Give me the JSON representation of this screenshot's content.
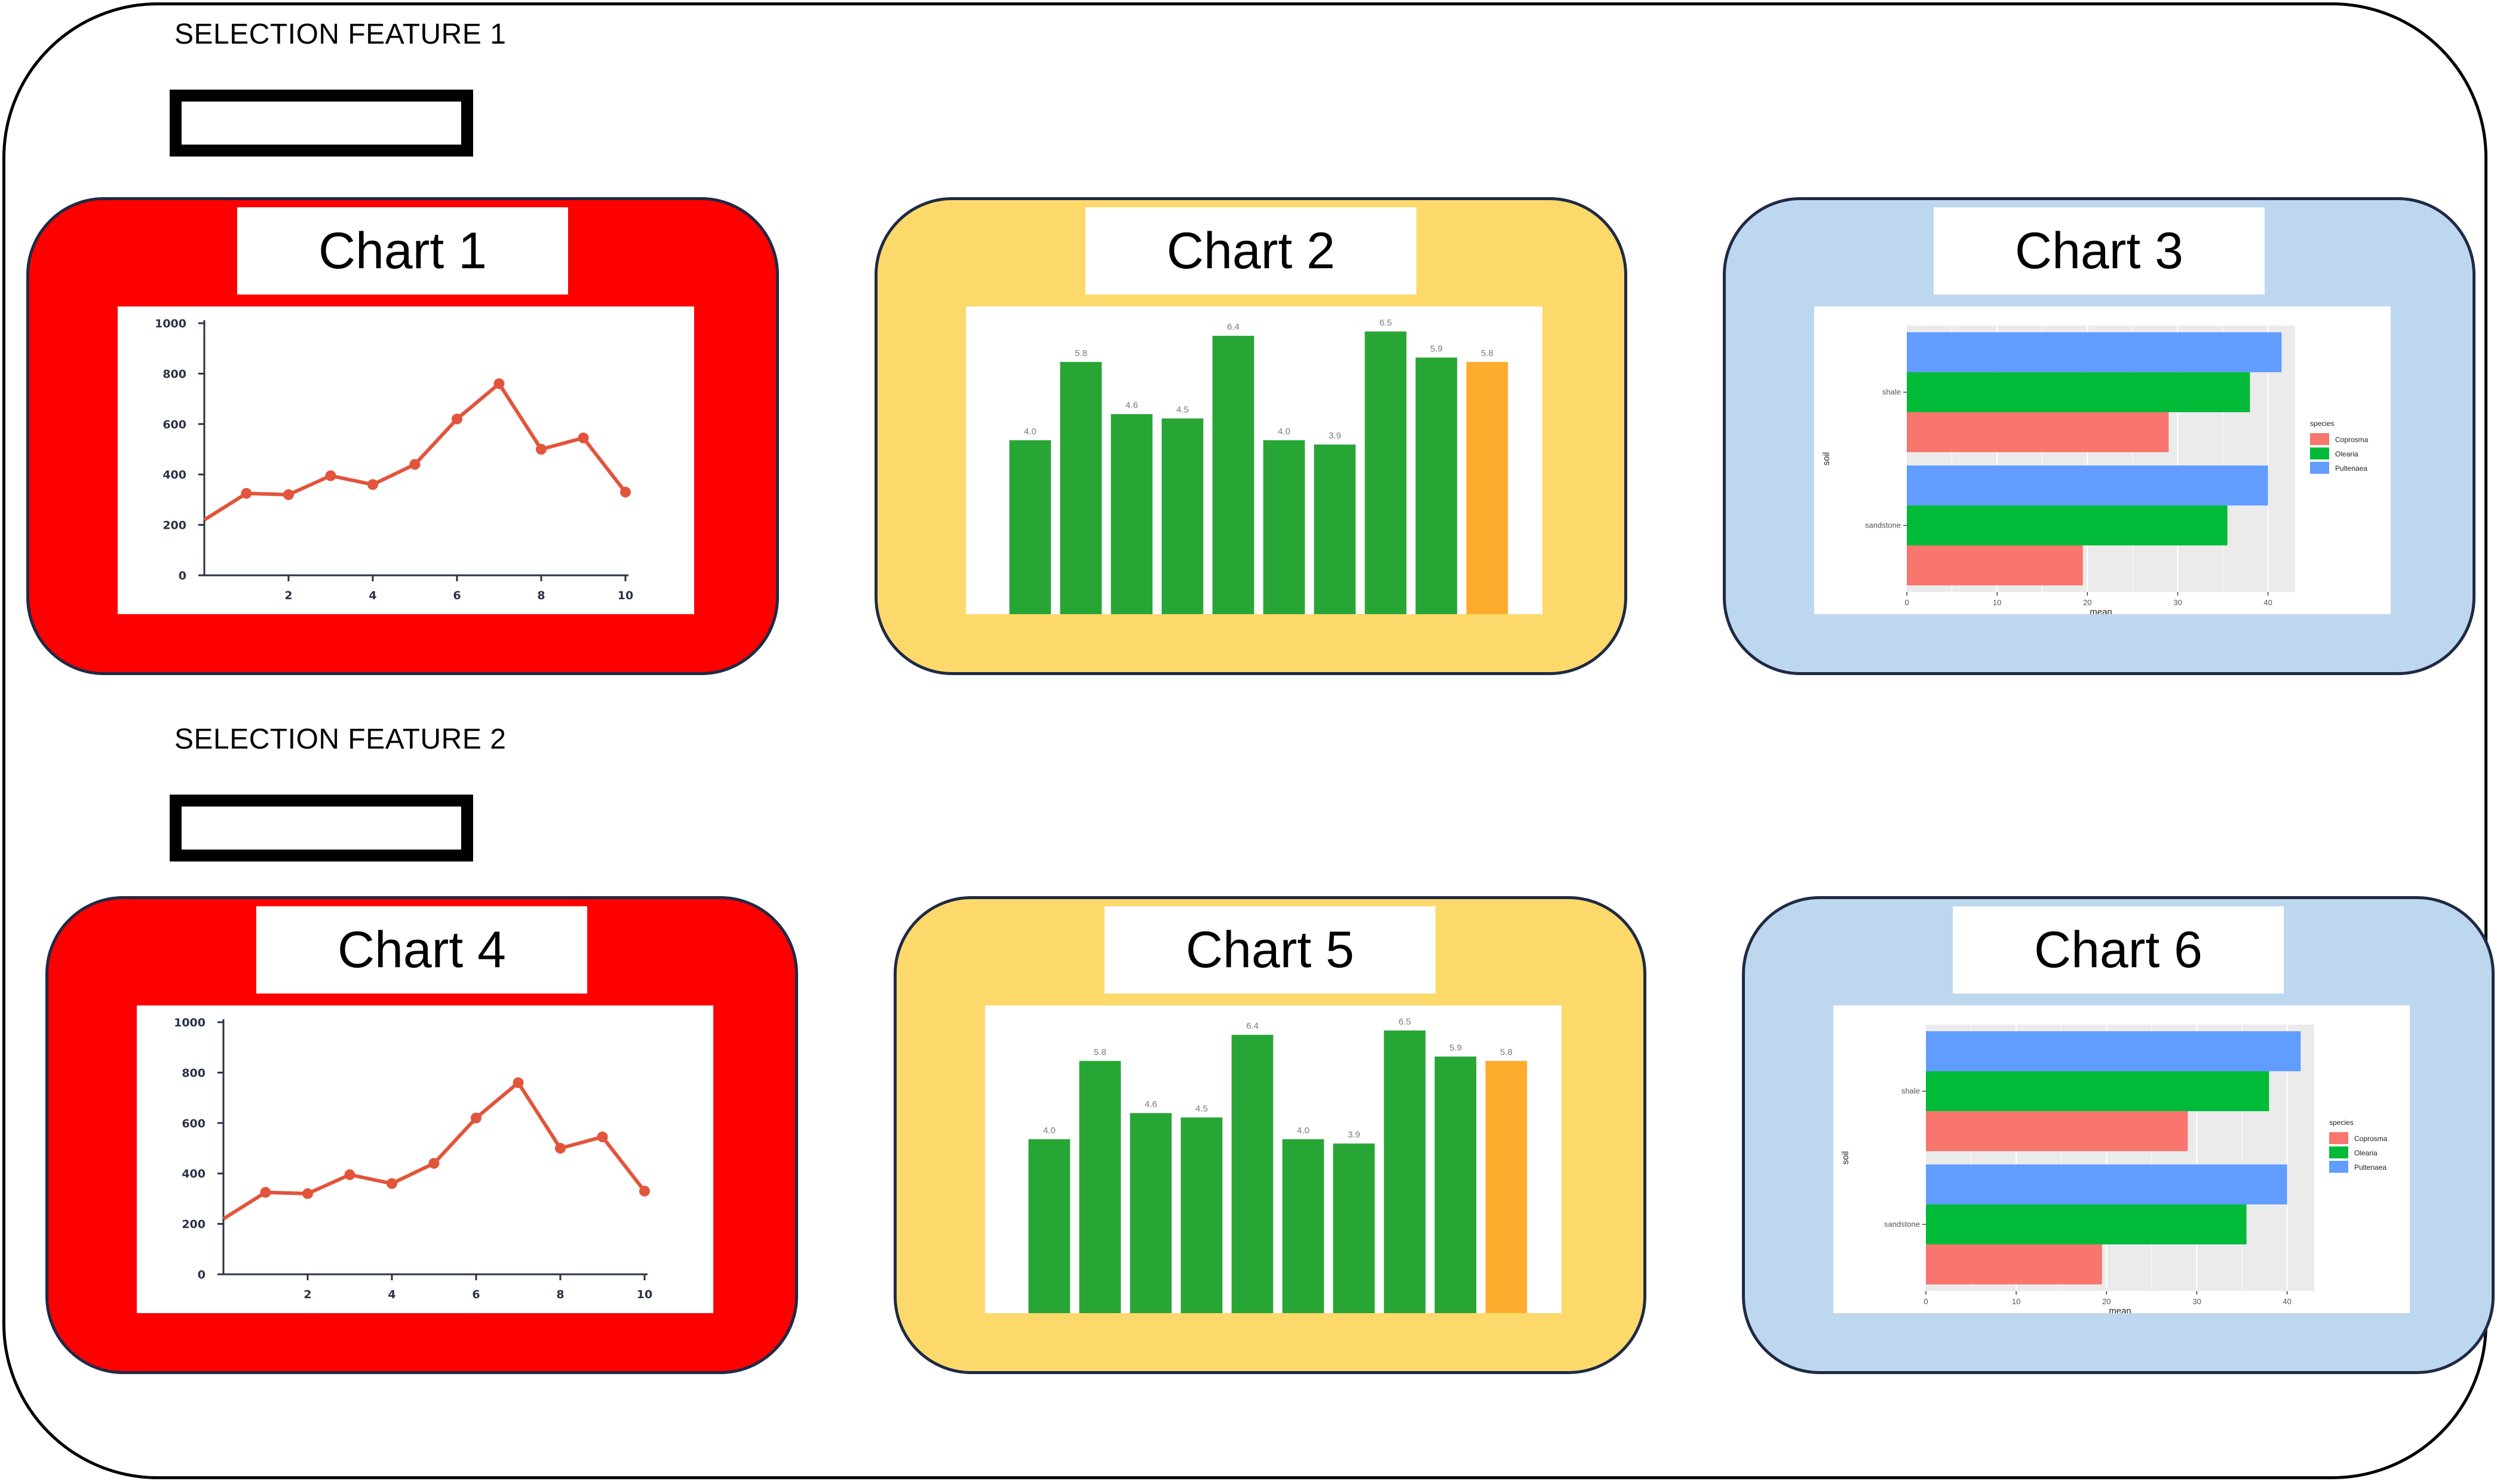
{
  "sections": [
    {
      "label": "SELECTION FEATURE 1"
    },
    {
      "label": "SELECTION FEATURE 2"
    }
  ],
  "cards": [
    {
      "title": "Chart 1",
      "color": "#fe0000",
      "kind": "line"
    },
    {
      "title": "Chart 2",
      "color": "#fdd96b",
      "kind": "bar"
    },
    {
      "title": "Chart 3",
      "color": "#bdd7ee",
      "kind": "hbar"
    },
    {
      "title": "Chart 4",
      "color": "#fe0000",
      "kind": "line"
    },
    {
      "title": "Chart 5",
      "color": "#fdd96b",
      "kind": "bar"
    },
    {
      "title": "Chart 6",
      "color": "#bdd7ee",
      "kind": "hbar"
    }
  ],
  "chart_data": [
    {
      "type": "line",
      "x": [
        0,
        1,
        2,
        3,
        4,
        5,
        6,
        7,
        8,
        9,
        10
      ],
      "y": [
        220,
        325,
        320,
        395,
        360,
        440,
        620,
        760,
        500,
        545,
        330
      ],
      "x_ticks": [
        "2",
        "4",
        "6",
        "8",
        "10"
      ],
      "y_ticks": [
        "0",
        "200",
        "400",
        "600",
        "800",
        "1000"
      ],
      "ylim": [
        0,
        1000
      ],
      "xlim": [
        0,
        10
      ],
      "color": "#e2543b"
    },
    {
      "type": "bar",
      "values": [
        4.0,
        5.8,
        4.6,
        4.5,
        6.4,
        4.0,
        3.9,
        6.5,
        5.9,
        5.8
      ],
      "labels": [
        "4.0",
        "5.8",
        "4.6",
        "4.5",
        "6.4",
        "4.0",
        "3.9",
        "6.5",
        "5.9",
        "5.8"
      ],
      "colors": [
        "#27a636",
        "#27a636",
        "#27a636",
        "#27a636",
        "#27a636",
        "#27a636",
        "#27a636",
        "#27a636",
        "#27a636",
        "#fcad2e"
      ],
      "ylim": [
        0,
        6.8
      ]
    },
    {
      "type": "bar",
      "orientation": "horizontal",
      "categories": [
        "shale",
        "sandstone"
      ],
      "series": [
        {
          "name": "Coprosma",
          "values": [
            29,
            19.5
          ],
          "color": "#f8766d"
        },
        {
          "name": "Olearia",
          "values": [
            38,
            35.5
          ],
          "color": "#00ba38"
        },
        {
          "name": "Pultenaea",
          "values": [
            41.5,
            40
          ],
          "color": "#619cff"
        }
      ],
      "xlabel": "mean",
      "ylabel": "soil",
      "x_ticks": [
        "0",
        "10",
        "20",
        "30",
        "40"
      ],
      "xlim": [
        0,
        43
      ],
      "legend_title": "species",
      "legend_position": "right",
      "grid": true
    },
    {
      "type": "line",
      "x": [
        0,
        1,
        2,
        3,
        4,
        5,
        6,
        7,
        8,
        9,
        10
      ],
      "y": [
        220,
        325,
        320,
        395,
        360,
        440,
        620,
        760,
        500,
        545,
        330
      ],
      "x_ticks": [
        "2",
        "4",
        "6",
        "8",
        "10"
      ],
      "y_ticks": [
        "0",
        "200",
        "400",
        "600",
        "800",
        "1000"
      ],
      "ylim": [
        0,
        1000
      ],
      "xlim": [
        0,
        10
      ],
      "color": "#e2543b"
    },
    {
      "type": "bar",
      "values": [
        4.0,
        5.8,
        4.6,
        4.5,
        6.4,
        4.0,
        3.9,
        6.5,
        5.9,
        5.8
      ],
      "labels": [
        "4.0",
        "5.8",
        "4.6",
        "4.5",
        "6.4",
        "4.0",
        "3.9",
        "6.5",
        "5.9",
        "5.8"
      ],
      "colors": [
        "#27a636",
        "#27a636",
        "#27a636",
        "#27a636",
        "#27a636",
        "#27a636",
        "#27a636",
        "#27a636",
        "#27a636",
        "#fcad2e"
      ],
      "ylim": [
        0,
        6.8
      ]
    },
    {
      "type": "bar",
      "orientation": "horizontal",
      "categories": [
        "shale",
        "sandstone"
      ],
      "series": [
        {
          "name": "Coprosma",
          "values": [
            29,
            19.5
          ],
          "color": "#f8766d"
        },
        {
          "name": "Olearia",
          "values": [
            38,
            35.5
          ],
          "color": "#00ba38"
        },
        {
          "name": "Pultenaea",
          "values": [
            41.5,
            40
          ],
          "color": "#619cff"
        }
      ],
      "xlabel": "mean",
      "ylabel": "soil",
      "x_ticks": [
        "0",
        "10",
        "20",
        "30",
        "40"
      ],
      "xlim": [
        0,
        43
      ],
      "legend_title": "species",
      "legend_position": "right",
      "grid": true
    }
  ]
}
